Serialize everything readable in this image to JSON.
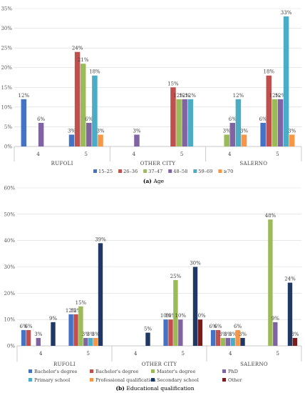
{
  "chart_data": [
    {
      "type": "bar",
      "caption_tag": "(a)",
      "caption_text": "Age",
      "groups": [
        "RUFOLI",
        "OTHER CITY",
        "SALERNO"
      ],
      "categories": [
        "4",
        "5",
        "4",
        "5",
        "4",
        "5"
      ],
      "ylim": [
        0,
        35
      ],
      "yticks": [
        "0%",
        "5%",
        "10%",
        "15%",
        "20%",
        "25%",
        "30%",
        "35%"
      ],
      "grid": true,
      "legend_position": "bottom",
      "series": [
        {
          "name": "15–25",
          "color": "#4472C4",
          "values": [
            12,
            3,
            null,
            null,
            null,
            6
          ]
        },
        {
          "name": "26–36",
          "color": "#C0504D",
          "values": [
            null,
            24,
            null,
            15,
            null,
            18
          ]
        },
        {
          "name": "37–47",
          "color": "#9BBB59",
          "values": [
            null,
            21,
            null,
            12,
            3,
            12
          ]
        },
        {
          "name": "48–58",
          "color": "#8064A2",
          "values": [
            6,
            6,
            3,
            12,
            6,
            12
          ]
        },
        {
          "name": "59–69",
          "color": "#4BACC6",
          "values": [
            null,
            18,
            null,
            12,
            12,
            33
          ]
        },
        {
          "name": "≥70",
          "color": "#F79646",
          "values": [
            null,
            3,
            null,
            null,
            3,
            3
          ]
        }
      ],
      "labels": [
        [
          "12%",
          "3%",
          "",
          "",
          "",
          "6%"
        ],
        [
          "",
          "24%",
          "",
          "15%",
          "",
          "18%"
        ],
        [
          "",
          "21%",
          "",
          "12%",
          "3%",
          "12%"
        ],
        [
          "6%",
          "6%",
          "3%",
          "12%",
          "6%",
          "12%"
        ],
        [
          "",
          "18%",
          "",
          "12%",
          "12%",
          "33%"
        ],
        [
          "",
          "3%",
          "",
          "",
          "3%",
          "3%"
        ]
      ]
    },
    {
      "type": "bar",
      "caption_tag": "(b)",
      "caption_text": "Educational qualification",
      "groups": [
        "RUFOLI",
        "OTHER CITY",
        "SALERNO"
      ],
      "categories": [
        "4",
        "5",
        "4",
        "5",
        "4",
        "5"
      ],
      "ylim": [
        0,
        60
      ],
      "yticks": [
        "0%",
        "10%",
        "20%",
        "30%",
        "40%",
        "50%",
        "60%"
      ],
      "grid": true,
      "legend_position": "bottom",
      "series": [
        {
          "name": "Bachelor's degree",
          "color": "#4472C4",
          "values": [
            6,
            12,
            null,
            10,
            6,
            null
          ]
        },
        {
          "name": "Bachelor's degree",
          "color": "#C0504D",
          "values": [
            6,
            12,
            null,
            10,
            6,
            null
          ]
        },
        {
          "name": "Master's degree",
          "color": "#9BBB59",
          "values": [
            null,
            15,
            null,
            25,
            3,
            48
          ]
        },
        {
          "name": "PhD",
          "color": "#8064A2",
          "values": [
            3,
            3,
            null,
            10,
            3,
            9
          ]
        },
        {
          "name": "Primary school",
          "color": "#4BACC6",
          "values": [
            null,
            3,
            null,
            null,
            3,
            null
          ]
        },
        {
          "name": "Professional qualification",
          "color": "#F79646",
          "values": [
            null,
            3,
            null,
            null,
            6,
            null
          ]
        },
        {
          "name": "Secondary school",
          "color": "#1F3864",
          "values": [
            9,
            39,
            5,
            30,
            3,
            24
          ]
        },
        {
          "name": "Other",
          "color": "#7B1C1C",
          "values": [
            null,
            null,
            null,
            10,
            null,
            3
          ]
        }
      ],
      "labels": [
        [
          "6%",
          "12%",
          "",
          "10%",
          "6%",
          ""
        ],
        [
          "6%",
          "12%",
          "",
          "10%",
          "6%",
          ""
        ],
        [
          "",
          "15%",
          "",
          "25%",
          "3%",
          "48%"
        ],
        [
          "3%",
          "3%",
          "",
          "10%",
          "3%",
          "9%"
        ],
        [
          "",
          "3%",
          "",
          "",
          "3%",
          ""
        ],
        [
          "",
          "3%",
          "",
          "",
          "6%",
          ""
        ],
        [
          "9%",
          "39%",
          "5%",
          "30%",
          "3%",
          "24%"
        ],
        [
          "",
          "",
          "",
          "10%",
          "",
          "3%"
        ]
      ]
    }
  ]
}
